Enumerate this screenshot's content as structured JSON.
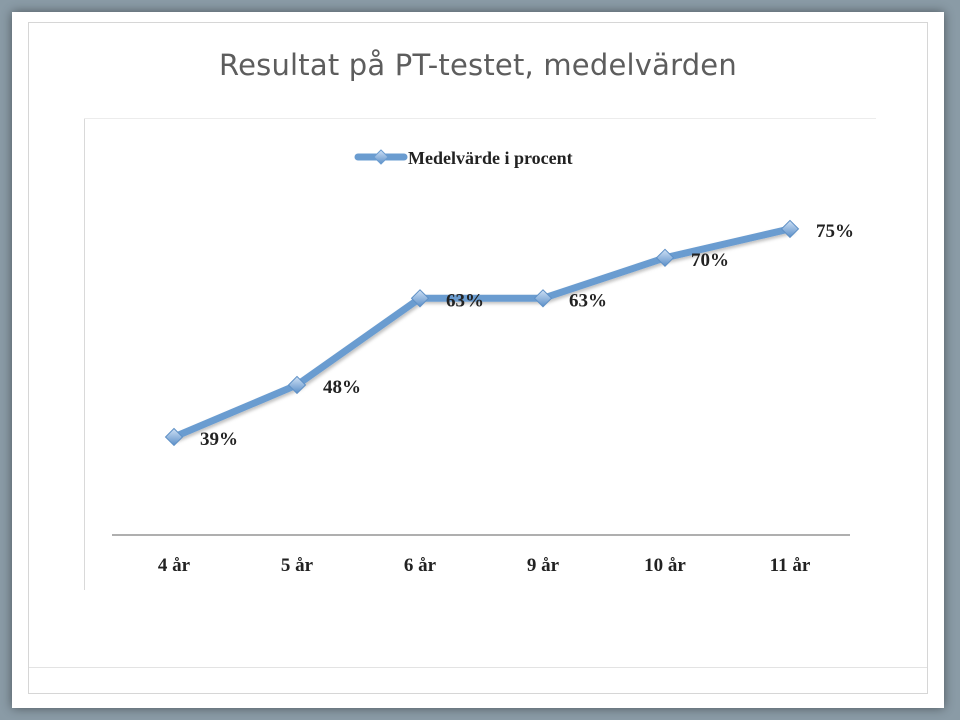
{
  "slide": {
    "title": "Resultat på PT-testet, medelvärden"
  },
  "chart_data": {
    "type": "line",
    "categories": [
      "4 år",
      "5 år",
      "6 år",
      "9 år",
      "10 år",
      "11 år"
    ],
    "series": [
      {
        "name": "Medelvärde i procent",
        "values": [
          39,
          48,
          63,
          63,
          70,
          75
        ],
        "data_labels": [
          "39%",
          "48%",
          "63%",
          "63%",
          "70%",
          "75%"
        ],
        "color": "#6a9cd0"
      }
    ],
    "title": "",
    "xlabel": "",
    "ylabel": "",
    "ylim": [
      30,
      80
    ],
    "grid": false,
    "legend_position": "top"
  }
}
